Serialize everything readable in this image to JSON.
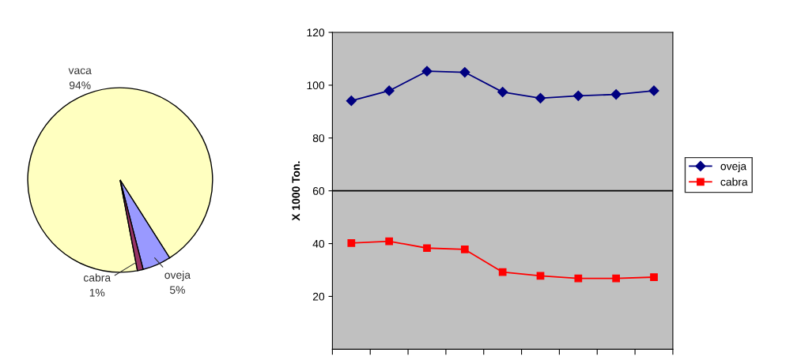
{
  "chart_data": [
    {
      "type": "pie",
      "categories": [
        "vaca",
        "oveja",
        "cabra"
      ],
      "values": [
        94,
        5,
        1
      ],
      "colors": [
        "#ffffc0",
        "#9999ff",
        "#993366"
      ],
      "value_labels": [
        "94%",
        "5%",
        "1%"
      ]
    },
    {
      "type": "line",
      "categories": [
        null,
        null,
        null,
        null,
        null,
        null,
        null,
        null,
        null
      ],
      "ylabel": "X 1000 Ton.",
      "ylim": [
        0,
        120
      ],
      "yticks": [
        20,
        40,
        60,
        80,
        100,
        120
      ],
      "legend": "right",
      "ref_lines": [
        {
          "axis": "y",
          "value": 60,
          "color": "#000000"
        }
      ],
      "series": [
        {
          "name": "oveja",
          "color": "#000080",
          "marker": "diamond",
          "values": [
            94.1,
            97.9,
            105.3,
            104.9,
            97.4,
            95.1,
            96.0,
            96.5,
            97.9
          ]
        },
        {
          "name": "cabra",
          "color": "#ff0000",
          "marker": "square",
          "values": [
            40.2,
            40.9,
            38.3,
            37.8,
            29.2,
            27.8,
            26.8,
            26.8,
            27.3
          ]
        }
      ]
    }
  ]
}
